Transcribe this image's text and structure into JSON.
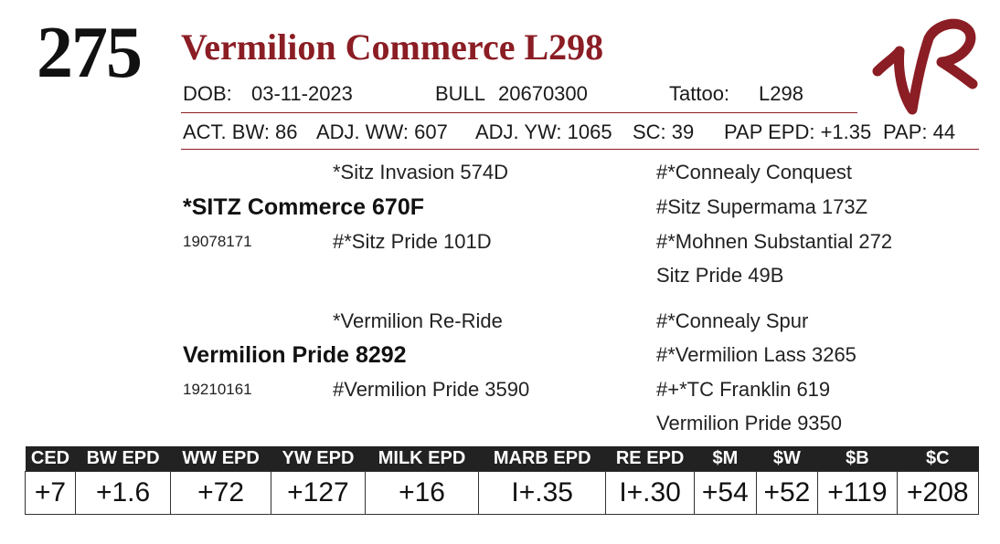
{
  "lot_number": "275",
  "animal_name": "Vermilion Commerce L298",
  "info_row1": {
    "dob_label": "DOB:",
    "dob_value": "03-11-2023",
    "sex_label": "BULL",
    "reg_number": "20670300",
    "tattoo_label": "Tattoo:",
    "tattoo_value": "L298"
  },
  "info_row2": {
    "act_bw": "ACT. BW: 86",
    "adj_ww": "ADJ. WW: 607",
    "adj_yw": "ADJ. YW: 1065",
    "sc": "SC: 39",
    "pap_epd": "PAP EPD: +1.35",
    "pap": "PAP: 44"
  },
  "pedigree": {
    "sire": "*SITZ Commerce 670F",
    "sire_reg": "19078171",
    "sire_sire": "*Sitz Invasion 574D",
    "sire_dam": "#*Sitz Pride 101D",
    "sss": "#*Connealy Conquest",
    "ssd": "#Sitz Supermama 173Z",
    "sds": "#*Mohnen Substantial 272",
    "sdd": "Sitz Pride 49B",
    "dam": "Vermilion Pride 8292",
    "dam_reg": "19210161",
    "dam_sire": "*Vermilion Re-Ride",
    "dam_dam": "#Vermilion Pride 3590",
    "dss": "#*Connealy Spur",
    "dsd": "#*Vermilion Lass 3265",
    "dds": "#+*TC Franklin 619",
    "ddd": "Vermilion Pride 9350"
  },
  "epds": {
    "headers": [
      "CED",
      "BW EPD",
      "WW EPD",
      "YW EPD",
      "MILK EPD",
      "MARB EPD",
      "RE EPD",
      "$M",
      "$W",
      "$B",
      "$C"
    ],
    "values": [
      "+7",
      "+1.6",
      "+72",
      "+127",
      "+16",
      "I+.35",
      "I+.30",
      "+54",
      "+52",
      "+119",
      "+208"
    ]
  },
  "colors": {
    "accent": "#8b1d24",
    "header_bg": "#222222"
  },
  "logo_icon": "vr-brand-icon"
}
